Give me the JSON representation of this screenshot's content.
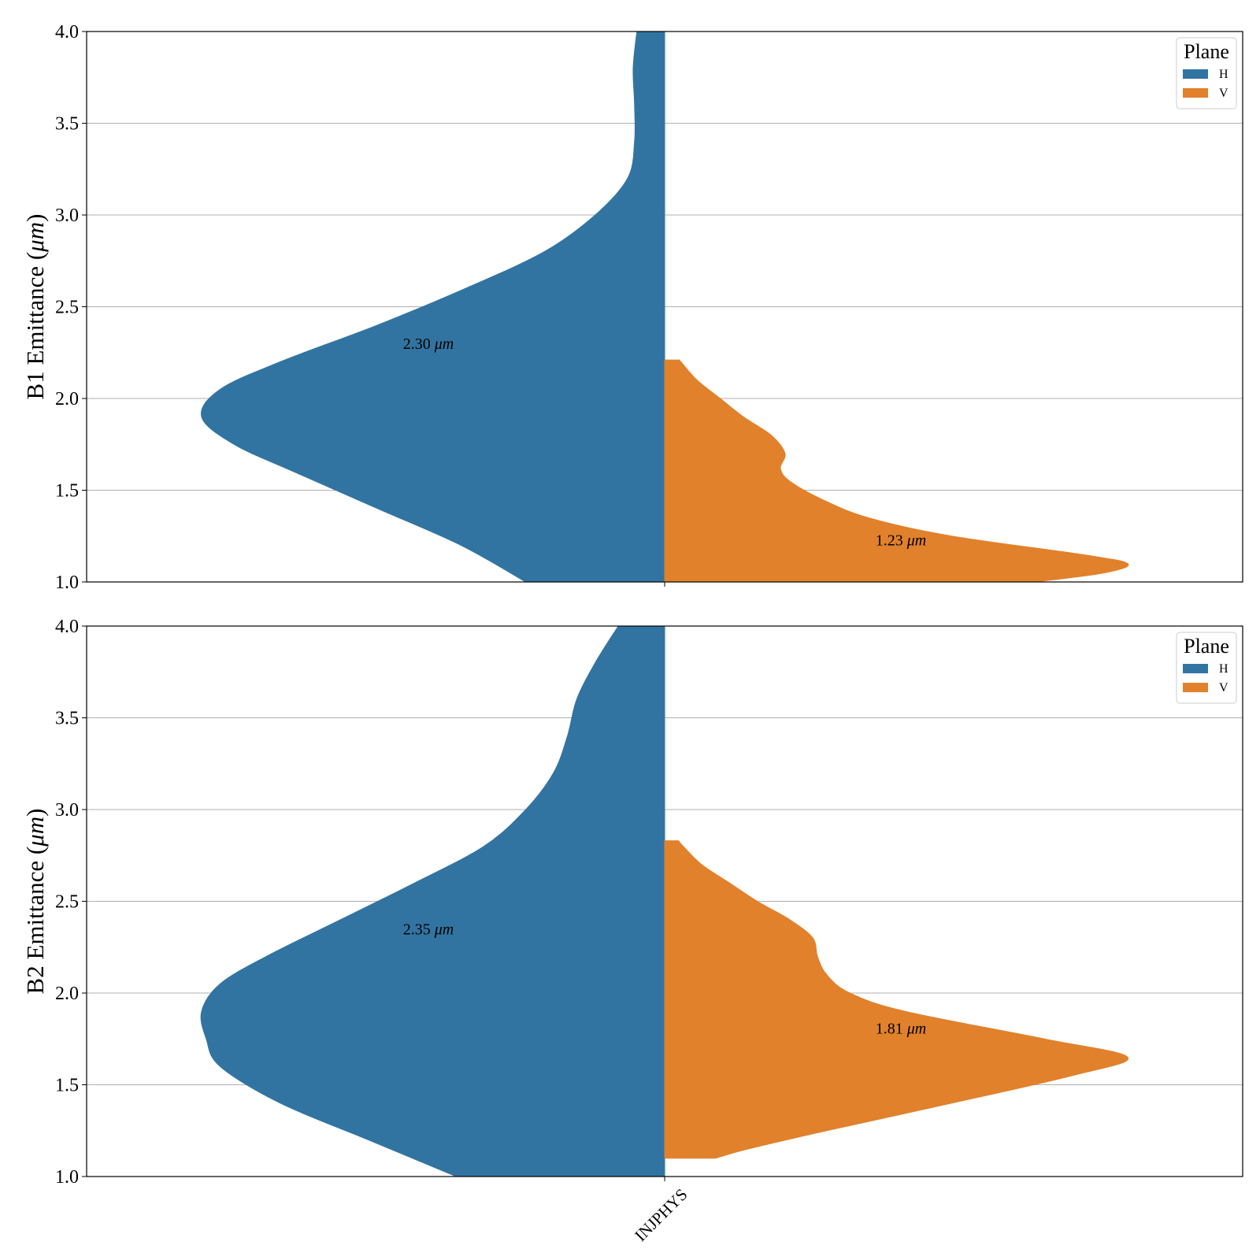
{
  "chart_data": [
    {
      "type": "violin",
      "ylabel": "B1 Emittance (μm)",
      "ylabel_prefix": "B1 Emittance (",
      "ylabel_unit": "μm",
      "ylabel_suffix": ")",
      "ylim": [
        1.0,
        4.0
      ],
      "yticks": [
        "1.0",
        "1.5",
        "2.0",
        "2.5",
        "3.0",
        "3.5",
        "4.0"
      ],
      "grid": "y",
      "categories": [
        ""
      ],
      "legend": {
        "title": "Plane",
        "placement": "top-right"
      },
      "series": [
        {
          "name": "H",
          "side": "left",
          "color": "#3274a1",
          "annotation": {
            "value": "2.30",
            "unit": "μm",
            "y": 2.3
          },
          "density": [
            [
              1.0,
              0.3
            ],
            [
              1.2,
              0.44
            ],
            [
              1.4,
              0.62
            ],
            [
              1.6,
              0.8
            ],
            [
              1.75,
              0.93
            ],
            [
              1.9,
              1.0
            ],
            [
              2.05,
              0.96
            ],
            [
              2.2,
              0.83
            ],
            [
              2.4,
              0.62
            ],
            [
              2.6,
              0.43
            ],
            [
              2.8,
              0.26
            ],
            [
              3.0,
              0.15
            ],
            [
              3.2,
              0.08
            ],
            [
              3.4,
              0.065
            ],
            [
              3.6,
              0.065
            ],
            [
              3.8,
              0.068
            ],
            [
              4.0,
              0.06
            ]
          ]
        },
        {
          "name": "V",
          "side": "right",
          "color": "#e1812c",
          "annotation": {
            "value": "1.23",
            "unit": "μm",
            "y": 1.23
          },
          "density": [
            [
              1.0,
              0.8
            ],
            [
              1.05,
              0.95
            ],
            [
              1.1,
              1.0
            ],
            [
              1.15,
              0.9
            ],
            [
              1.25,
              0.62
            ],
            [
              1.35,
              0.44
            ],
            [
              1.45,
              0.34
            ],
            [
              1.55,
              0.27
            ],
            [
              1.62,
              0.25
            ],
            [
              1.7,
              0.26
            ],
            [
              1.8,
              0.23
            ],
            [
              1.9,
              0.17
            ],
            [
              2.0,
              0.12
            ],
            [
              2.1,
              0.07
            ],
            [
              2.2,
              0.035
            ],
            [
              2.21,
              0.03
            ]
          ]
        }
      ]
    },
    {
      "type": "violin",
      "ylabel": "B2 Emittance (μm)",
      "ylabel_prefix": "B2 Emittance (",
      "ylabel_unit": "μm",
      "ylabel_suffix": ")",
      "ylim": [
        1.0,
        4.0
      ],
      "yticks": [
        "1.0",
        "1.5",
        "2.0",
        "2.5",
        "3.0",
        "3.5",
        "4.0"
      ],
      "grid": "y",
      "categories": [
        "INJPHYS"
      ],
      "legend": {
        "title": "Plane",
        "placement": "top-right"
      },
      "series": [
        {
          "name": "H",
          "side": "left",
          "color": "#3274a1",
          "annotation": {
            "value": "2.35",
            "unit": "μm",
            "y": 2.35
          },
          "density": [
            [
              1.0,
              0.45
            ],
            [
              1.2,
              0.64
            ],
            [
              1.4,
              0.83
            ],
            [
              1.6,
              0.96
            ],
            [
              1.75,
              0.99
            ],
            [
              1.9,
              1.0
            ],
            [
              2.05,
              0.96
            ],
            [
              2.2,
              0.86
            ],
            [
              2.4,
              0.7
            ],
            [
              2.6,
              0.54
            ],
            [
              2.8,
              0.39
            ],
            [
              3.0,
              0.3
            ],
            [
              3.2,
              0.24
            ],
            [
              3.4,
              0.21
            ],
            [
              3.6,
              0.19
            ],
            [
              3.8,
              0.15
            ],
            [
              4.0,
              0.1
            ]
          ]
        },
        {
          "name": "V",
          "side": "right",
          "color": "#e1812c",
          "annotation": {
            "value": "1.81",
            "unit": "μm",
            "y": 1.81
          },
          "density": [
            [
              1.1,
              0.11
            ],
            [
              1.15,
              0.18
            ],
            [
              1.25,
              0.35
            ],
            [
              1.4,
              0.62
            ],
            [
              1.55,
              0.88
            ],
            [
              1.65,
              1.0
            ],
            [
              1.75,
              0.82
            ],
            [
              1.9,
              0.52
            ],
            [
              2.0,
              0.4
            ],
            [
              2.1,
              0.35
            ],
            [
              2.2,
              0.33
            ],
            [
              2.3,
              0.32
            ],
            [
              2.4,
              0.27
            ],
            [
              2.5,
              0.2
            ],
            [
              2.6,
              0.14
            ],
            [
              2.7,
              0.08
            ],
            [
              2.8,
              0.04
            ],
            [
              2.83,
              0.03
            ]
          ]
        }
      ]
    }
  ]
}
